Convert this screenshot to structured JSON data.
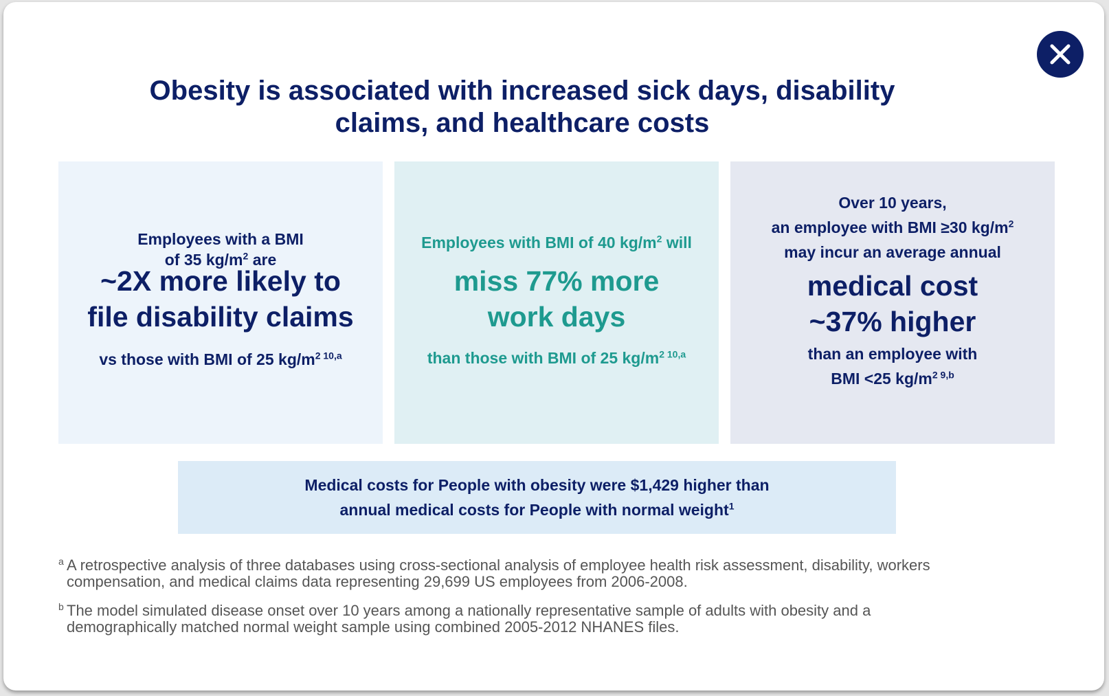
{
  "header": {
    "title_line1": "Obesity is associated with increased sick days, disability",
    "title_line2": "claims, and healthcare costs",
    "close_icon": "close-icon"
  },
  "cards": [
    {
      "lead_line1": "Employees with a BMI",
      "lead_line2": "of 35 kg/m",
      "lead_sup": "2",
      "lead_line2_end": " are",
      "big_line1": "~2X more likely to",
      "big_line2": "file disability claims",
      "tail": "vs those with BMI of 25 kg/m",
      "tail_sup": "2 10,a"
    },
    {
      "lead": "Employees with BMI of 40 kg/m",
      "lead_sup": "2",
      "lead_end": " will",
      "big_line1": "miss 77% more",
      "big_line2": "work days",
      "tail": "than those with BMI of 25 kg/m",
      "tail_sup": "2 10,a"
    },
    {
      "lead_line1": "Over 10 years,",
      "lead_line2": "an employee with BMI ≥30 kg/m",
      "lead_sup": "2",
      "lead_line3": "may incur an average annual",
      "big_line1": "medical cost",
      "big_line2": "~37% higher",
      "tail_line1": "than an employee with",
      "tail_line2": "BMI <25 kg/m",
      "tail_sup": "2 9,b"
    }
  ],
  "banner": {
    "line1": "Medical costs for People with obesity were $1,429 higher than",
    "line2": "annual medical costs for People with normal weight",
    "sup": "1"
  },
  "footnotes": [
    {
      "mark": "a",
      "line1": "A retrospective analysis of three databases using cross-sectional analysis of employee health risk assessment, disability, workers",
      "line2": "compensation, and medical claims data representing 29,699 US employees from 2006-2008."
    },
    {
      "mark": "b",
      "line1": "The model simulated disease onset over 10 years among a nationally representative sample of adults with obesity and a",
      "line2": "demographically matched normal weight sample using combined 2005-2012 NHANES files."
    }
  ],
  "colors": {
    "navy": "#0d1f66",
    "teal": "#1e9a8f",
    "card1_bg": "#edf4fb",
    "card2_bg": "#e0f0f3",
    "card3_bg": "#e5e8f1",
    "banner_bg": "#dcebf7"
  }
}
